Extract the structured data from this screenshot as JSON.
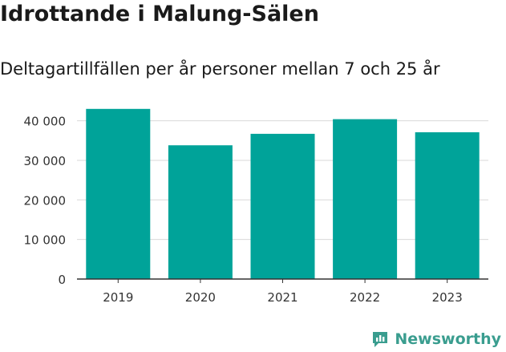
{
  "title": "Idrottande i Malung-Sälen",
  "subtitle": "Deltagartillfällen per år personer mellan 7 och 25 år",
  "brand": "Newsworthy",
  "colors": {
    "bar": "#00a399",
    "grid": "#d9d9d9",
    "axis": "#333333",
    "brand": "#3a9d8f"
  },
  "chart_data": {
    "type": "bar",
    "categories": [
      "2019",
      "2020",
      "2021",
      "2022",
      "2023"
    ],
    "values": [
      43000,
      33800,
      36700,
      40400,
      37100
    ],
    "ylim": [
      0,
      46000
    ],
    "yticks": [
      0,
      10000,
      20000,
      30000,
      40000
    ],
    "ytick_labels": [
      "0",
      "10 000",
      "20 000",
      "30 000",
      "40 000"
    ],
    "xlabel": "",
    "ylabel": "",
    "grid": true
  }
}
